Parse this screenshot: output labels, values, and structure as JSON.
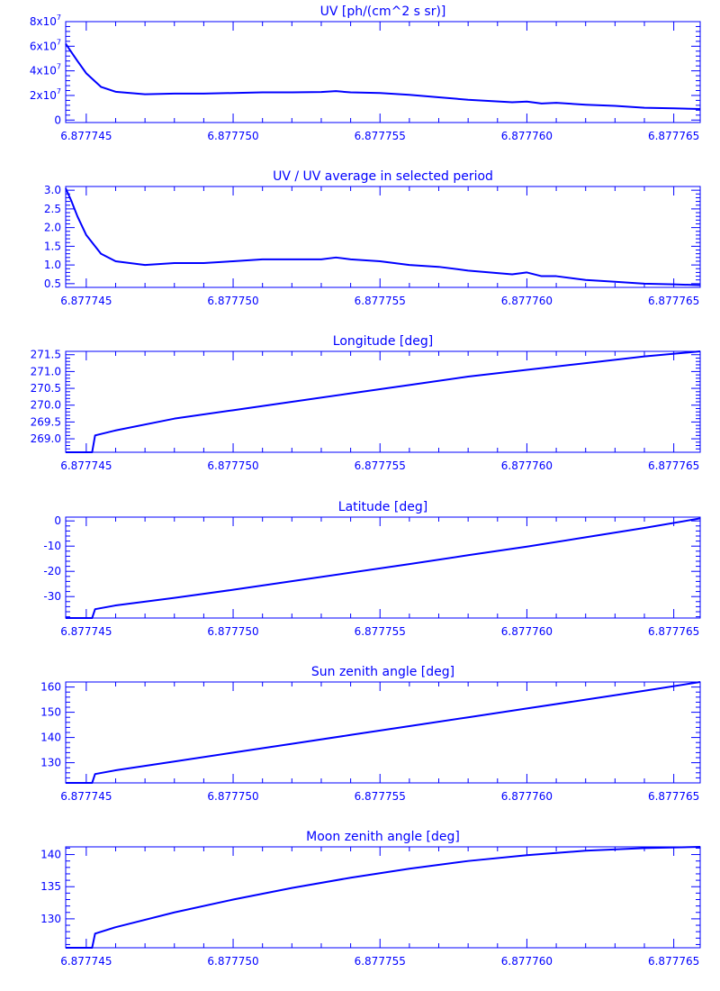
{
  "chart_data": [
    {
      "type": "line",
      "title": "UV [ph/(cm^2 s sr)]",
      "xlim": [
        6.8777443,
        6.8777659
      ],
      "ylim": [
        -2000000,
        80000000
      ],
      "xticks": [
        "6.877745",
        "6.877750",
        "6.877755",
        "6.877760",
        "6.877765"
      ],
      "yticks": [
        {
          "value": 0,
          "label": "0"
        },
        {
          "value": 20000000,
          "label": "2x10",
          "exp": "7"
        },
        {
          "value": 40000000,
          "label": "4x10",
          "exp": "7"
        },
        {
          "value": 60000000,
          "label": "6x10",
          "exp": "7"
        },
        {
          "value": 80000000,
          "label": "8x10",
          "exp": "7"
        }
      ],
      "x": [
        6.8777443,
        6.8777445,
        6.8777447,
        6.877745,
        6.8777455,
        6.877746,
        6.877747,
        6.877748,
        6.877749,
        6.87775,
        6.877751,
        6.877752,
        6.877753,
        6.8777535,
        6.877754,
        6.877755,
        6.877756,
        6.877757,
        6.877758,
        6.8777595,
        6.87776,
        6.8777605,
        6.877761,
        6.877762,
        6.877763,
        6.877764,
        6.877765,
        6.8777659
      ],
      "values": [
        62000000,
        55000000,
        48000000,
        38000000,
        27000000,
        23000000,
        21000000,
        21500000,
        21500000,
        22000000,
        22500000,
        22500000,
        22800000,
        23500000,
        22500000,
        22000000,
        20500000,
        18500000,
        16500000,
        14500000,
        15000000,
        13500000,
        14000000,
        12500000,
        11500000,
        10000000,
        9500000,
        9000000
      ]
    },
    {
      "type": "line",
      "title": "UV / UV average in selected period",
      "xlim": [
        6.8777443,
        6.8777659
      ],
      "ylim": [
        0.4,
        3.1
      ],
      "xticks": [
        "6.877745",
        "6.877750",
        "6.877755",
        "6.877760",
        "6.877765"
      ],
      "yticks": [
        {
          "value": 0.5,
          "label": "0.5"
        },
        {
          "value": 1.0,
          "label": "1.0"
        },
        {
          "value": 1.5,
          "label": "1.5"
        },
        {
          "value": 2.0,
          "label": "2.0"
        },
        {
          "value": 2.5,
          "label": "2.5"
        },
        {
          "value": 3.0,
          "label": "3.0"
        }
      ],
      "x": [
        6.8777443,
        6.8777445,
        6.8777447,
        6.877745,
        6.8777455,
        6.877746,
        6.877747,
        6.877748,
        6.877749,
        6.87775,
        6.877751,
        6.877752,
        6.877753,
        6.8777535,
        6.877754,
        6.877755,
        6.877756,
        6.877757,
        6.877758,
        6.8777595,
        6.87776,
        6.8777605,
        6.877761,
        6.877762,
        6.877763,
        6.877764,
        6.877765,
        6.8777659
      ],
      "values": [
        3.05,
        2.7,
        2.3,
        1.8,
        1.3,
        1.1,
        1.0,
        1.05,
        1.05,
        1.1,
        1.15,
        1.15,
        1.15,
        1.2,
        1.15,
        1.1,
        1.0,
        0.95,
        0.85,
        0.75,
        0.8,
        0.7,
        0.7,
        0.6,
        0.55,
        0.5,
        0.48,
        0.46
      ]
    },
    {
      "type": "line",
      "title": "Longitude [deg]",
      "xlim": [
        6.8777443,
        6.8777659
      ],
      "ylim": [
        268.6,
        271.6
      ],
      "xticks": [
        "6.877745",
        "6.877750",
        "6.877755",
        "6.877760",
        "6.877765"
      ],
      "yticks": [
        {
          "value": 269.0,
          "label": "269.0"
        },
        {
          "value": 269.5,
          "label": "269.5"
        },
        {
          "value": 270.0,
          "label": "270.0"
        },
        {
          "value": 270.5,
          "label": "270.5"
        },
        {
          "value": 271.0,
          "label": "271.0"
        },
        {
          "value": 271.5,
          "label": "271.5"
        }
      ],
      "x": [
        6.8777443,
        6.8777452,
        6.8777453,
        6.877746,
        6.877748,
        6.87775,
        6.877752,
        6.877754,
        6.877756,
        6.877758,
        6.87776,
        6.877762,
        6.877764,
        6.8777659
      ],
      "values": [
        268.6,
        268.6,
        269.1,
        269.25,
        269.6,
        269.85,
        270.1,
        270.35,
        270.6,
        270.85,
        271.05,
        271.25,
        271.45,
        271.6
      ]
    },
    {
      "type": "line",
      "title": "Latitude [deg]",
      "xlim": [
        6.8777443,
        6.8777659
      ],
      "ylim": [
        -38.5,
        1.5
      ],
      "xticks": [
        "6.877745",
        "6.877750",
        "6.877755",
        "6.877760",
        "6.877765"
      ],
      "yticks": [
        {
          "value": -30,
          "label": "-30"
        },
        {
          "value": -20,
          "label": "-20"
        },
        {
          "value": -10,
          "label": "-10"
        },
        {
          "value": 0,
          "label": "0"
        }
      ],
      "x": [
        6.8777443,
        6.8777452,
        6.8777453,
        6.877746,
        6.877748,
        6.87775,
        6.877752,
        6.877754,
        6.877756,
        6.877758,
        6.87776,
        6.877762,
        6.877764,
        6.8777659
      ],
      "values": [
        -38.5,
        -38.5,
        -35,
        -33.5,
        -30.5,
        -27.3,
        -23.9,
        -20.5,
        -17.1,
        -13.6,
        -10.2,
        -6.5,
        -2.8,
        1
      ]
    },
    {
      "type": "line",
      "title": "Sun zenith angle [deg]",
      "xlim": [
        6.8777443,
        6.8777659
      ],
      "ylim": [
        122,
        162
      ],
      "xticks": [
        "6.877745",
        "6.877750",
        "6.877755",
        "6.877760",
        "6.877765"
      ],
      "yticks": [
        {
          "value": 130,
          "label": "130"
        },
        {
          "value": 140,
          "label": "140"
        },
        {
          "value": 150,
          "label": "150"
        },
        {
          "value": 160,
          "label": "160"
        }
      ],
      "x": [
        6.8777443,
        6.8777452,
        6.8777453,
        6.877746,
        6.877748,
        6.87775,
        6.877752,
        6.877754,
        6.877756,
        6.877758,
        6.87776,
        6.877762,
        6.877764,
        6.8777659
      ],
      "values": [
        122,
        122,
        125.5,
        127,
        130.5,
        134,
        137.5,
        141,
        144.5,
        148,
        151.5,
        155,
        158.5,
        162
      ]
    },
    {
      "type": "line",
      "title": "Moon zenith angle [deg]",
      "xlim": [
        6.8777443,
        6.8777659
      ],
      "ylim": [
        125.5,
        141.2
      ],
      "xticks": [
        "6.877745",
        "6.877750",
        "6.877755",
        "6.877760",
        "6.877765"
      ],
      "yticks": [
        {
          "value": 130,
          "label": "130"
        },
        {
          "value": 135,
          "label": "135"
        },
        {
          "value": 140,
          "label": "140"
        }
      ],
      "x": [
        6.8777443,
        6.8777452,
        6.8777453,
        6.877746,
        6.877748,
        6.87775,
        6.877752,
        6.877754,
        6.877756,
        6.877758,
        6.87776,
        6.877762,
        6.877764,
        6.8777659
      ],
      "values": [
        125.5,
        125.5,
        127.7,
        128.7,
        131,
        133,
        134.8,
        136.4,
        137.8,
        139,
        139.9,
        140.6,
        141,
        141.2
      ]
    }
  ]
}
